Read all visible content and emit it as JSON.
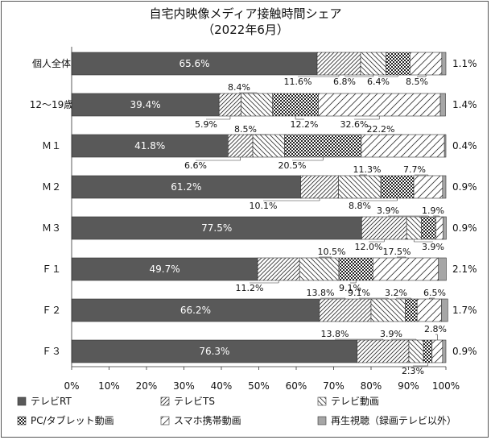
{
  "chart_data": {
    "type": "bar",
    "orientation": "horizontal",
    "stacked": "percent",
    "title": "自宅内映像メディア接触時間シェア",
    "subtitle": "（2022年6月）",
    "categories": [
      "個人全体",
      "12〜19歳",
      "Ｍ１",
      "Ｍ２",
      "Ｍ３",
      "Ｆ１",
      "Ｆ２",
      "Ｆ３"
    ],
    "series": [
      {
        "name": "テレビRT",
        "color": "#595959",
        "pattern": "solid",
        "values": [
          65.6,
          39.4,
          41.8,
          61.2,
          77.5,
          49.7,
          66.2,
          76.3
        ]
      },
      {
        "name": "テレビTS",
        "color": "#595959",
        "pattern": "diag-fwd",
        "values": [
          11.6,
          5.9,
          6.6,
          10.1,
          12.0,
          11.2,
          13.8,
          13.8
        ]
      },
      {
        "name": "テレビ動画",
        "color": "#595959",
        "pattern": "diag-back",
        "values": [
          6.8,
          8.4,
          8.5,
          11.3,
          3.9,
          10.5,
          9.1,
          3.9
        ]
      },
      {
        "name": "PC/タブレット動画",
        "color": "#595959",
        "pattern": "check",
        "values": [
          6.4,
          12.2,
          20.5,
          8.8,
          3.9,
          9.1,
          3.2,
          2.3
        ]
      },
      {
        "name": "スマホ携帯動画",
        "color": "#595959",
        "pattern": "diag-fwd-sparse",
        "values": [
          8.5,
          32.6,
          22.2,
          7.7,
          1.9,
          17.5,
          6.5,
          2.8
        ]
      },
      {
        "name": "再生視聴（録画テレビ以外）",
        "color": "#a6a6a6",
        "pattern": "solid",
        "values": [
          1.1,
          1.4,
          0.4,
          0.9,
          0.9,
          2.1,
          1.7,
          0.9
        ]
      }
    ],
    "xlim": [
      0,
      100
    ],
    "xticks": [
      "0%",
      "10%",
      "20%",
      "30%",
      "40%",
      "50%",
      "60%",
      "70%",
      "80%",
      "90%",
      "100%"
    ],
    "legend_position": "bottom",
    "grid": false
  }
}
